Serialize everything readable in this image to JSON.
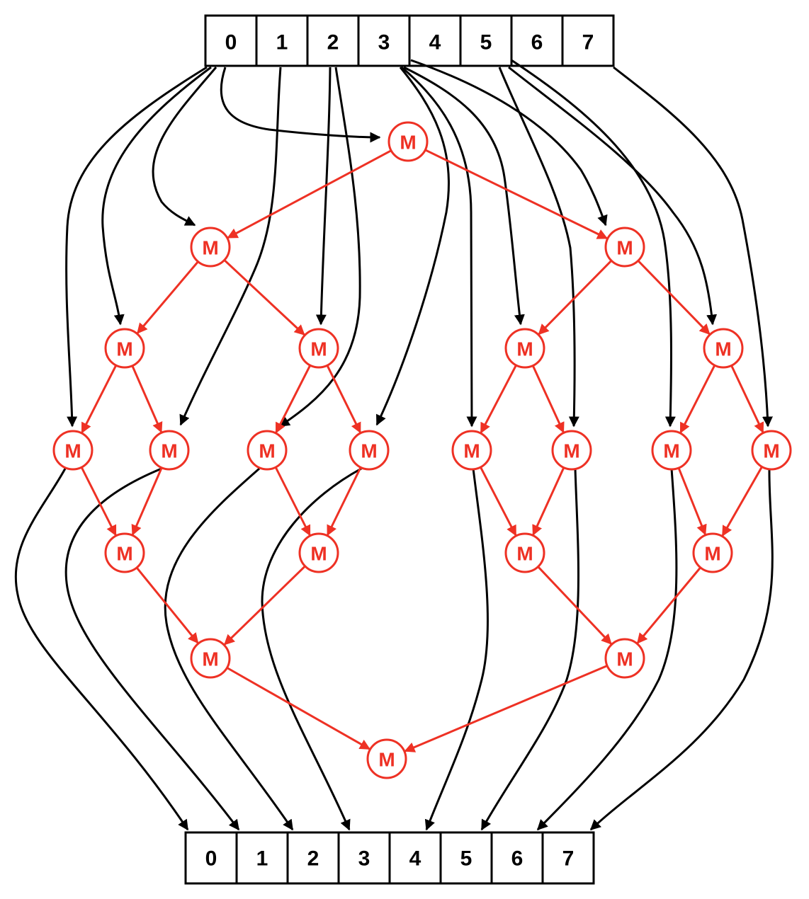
{
  "colors": {
    "data_flow": "#000000",
    "merge": "#ee3124",
    "background": "#ffffff"
  },
  "input_array": {
    "cells": [
      "0",
      "1",
      "2",
      "3",
      "4",
      "5",
      "6",
      "7"
    ]
  },
  "output_array": {
    "cells": [
      "0",
      "1",
      "2",
      "3",
      "4",
      "5",
      "6",
      "7"
    ]
  },
  "merge_nodes": [
    {
      "id": "n0",
      "label": "M"
    },
    {
      "id": "n1",
      "label": "M"
    },
    {
      "id": "n2",
      "label": "M"
    },
    {
      "id": "n3",
      "label": "M"
    },
    {
      "id": "n4",
      "label": "M"
    },
    {
      "id": "n5",
      "label": "M"
    },
    {
      "id": "n6",
      "label": "M"
    },
    {
      "id": "n7",
      "label": "M"
    },
    {
      "id": "n8",
      "label": "M"
    },
    {
      "id": "n9",
      "label": "M"
    },
    {
      "id": "n10",
      "label": "M"
    },
    {
      "id": "n11",
      "label": "M"
    },
    {
      "id": "n12",
      "label": "M"
    },
    {
      "id": "n13",
      "label": "M"
    },
    {
      "id": "n14",
      "label": "M"
    },
    {
      "id": "n15",
      "label": "M"
    },
    {
      "id": "n16",
      "label": "M"
    },
    {
      "id": "n17",
      "label": "M"
    },
    {
      "id": "n18",
      "label": "M"
    },
    {
      "id": "n19",
      "label": "M"
    },
    {
      "id": "n20",
      "label": "M"
    },
    {
      "id": "n21",
      "label": "M"
    }
  ],
  "merge_edges": [
    [
      "n0",
      "n1"
    ],
    [
      "n0",
      "n2"
    ],
    [
      "n1",
      "n3"
    ],
    [
      "n1",
      "n4"
    ],
    [
      "n2",
      "n5"
    ],
    [
      "n2",
      "n6"
    ],
    [
      "n3",
      "n7"
    ],
    [
      "n3",
      "n8"
    ],
    [
      "n4",
      "n9"
    ],
    [
      "n4",
      "n10"
    ],
    [
      "n5",
      "n11"
    ],
    [
      "n5",
      "n12"
    ],
    [
      "n6",
      "n13"
    ],
    [
      "n6",
      "n14"
    ],
    [
      "n7",
      "n15"
    ],
    [
      "n8",
      "n15"
    ],
    [
      "n9",
      "n16"
    ],
    [
      "n10",
      "n16"
    ],
    [
      "n11",
      "n17"
    ],
    [
      "n12",
      "n17"
    ],
    [
      "n13",
      "n18"
    ],
    [
      "n14",
      "n18"
    ],
    [
      "n15",
      "n19"
    ],
    [
      "n16",
      "n19"
    ],
    [
      "n17",
      "n20"
    ],
    [
      "n18",
      "n20"
    ],
    [
      "n19",
      "n21"
    ],
    [
      "n20",
      "n21"
    ]
  ],
  "input_edges": [
    {
      "from_cell": 0,
      "to": "n0"
    },
    {
      "from_cell": 0,
      "to": "n1"
    },
    {
      "from_cell": 0,
      "to": "n3"
    },
    {
      "from_cell": 0,
      "to": "n7"
    },
    {
      "from_cell": 1,
      "to": "n8"
    },
    {
      "from_cell": 2,
      "to": "n4"
    },
    {
      "from_cell": 2,
      "to": "n9"
    },
    {
      "from_cell": 3,
      "to": "n10"
    },
    {
      "from_cell": 3,
      "to": "n11"
    },
    {
      "from_cell": 3,
      "to": "n5"
    },
    {
      "from_cell": 3,
      "to": "n2"
    },
    {
      "from_cell": 5,
      "to": "n12"
    },
    {
      "from_cell": 5,
      "to": "n6"
    },
    {
      "from_cell": 5,
      "to": "n13"
    },
    {
      "from_cell": 7,
      "to": "n14"
    }
  ],
  "output_edges": [
    {
      "from": "n7",
      "to_cell": 0
    },
    {
      "from": "n8",
      "to_cell": 1
    },
    {
      "from": "n9",
      "to_cell": 2
    },
    {
      "from": "n10",
      "to_cell": 3
    },
    {
      "from": "n11",
      "to_cell": 4
    },
    {
      "from": "n12",
      "to_cell": 5
    },
    {
      "from": "n13",
      "to_cell": 6
    },
    {
      "from": "n14",
      "to_cell": 7
    }
  ]
}
